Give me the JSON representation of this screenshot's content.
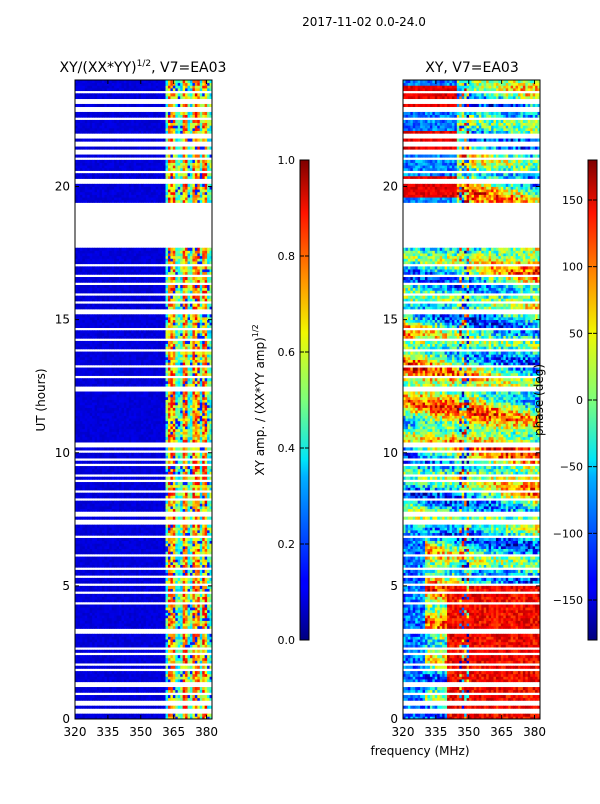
{
  "figure_title": "2017-11-02 0.0-24.0",
  "chart_data": [
    {
      "type": "heatmap",
      "title_prefix": "XY/(XX*YY)",
      "title_exponent": "1/2",
      "title_suffix": ", V7=EA03",
      "xlabel": "",
      "ylabel": "UT (hours)",
      "xlim": [
        320,
        382.5
      ],
      "ylim": [
        0,
        24
      ],
      "xticks": [
        320,
        335,
        350,
        365,
        380
      ],
      "yticks": [
        0,
        5,
        10,
        15,
        20
      ],
      "colorbar": {
        "label": "XY amp. / (XX*YY amp)",
        "label_exponent": "1/2",
        "range": [
          0.0,
          1.0
        ],
        "ticks": [
          "0.0",
          "0.2",
          "0.4",
          "0.6",
          "0.8",
          "1.0"
        ],
        "tick_values": [
          0.0,
          0.2,
          0.4,
          0.6,
          0.8,
          1.0
        ]
      },
      "blank_hours": [
        [
          19.35,
          17.7
        ]
      ],
      "gap_hours": [
        0.3,
        0.6,
        0.95,
        1.3,
        1.85,
        2.05,
        2.45,
        2.65,
        3.3,
        4.35,
        4.75,
        5.05,
        5.35,
        5.65,
        6.15,
        6.85,
        7.4,
        7.7,
        8.25,
        8.55,
        8.95,
        9.15,
        9.55,
        9.75,
        10.05,
        10.3,
        12.4,
        12.85,
        13.25,
        13.85,
        14.25,
        14.65,
        15.3,
        15.65,
        15.95,
        16.35,
        16.65,
        17.05,
        20.2,
        20.55,
        21.05,
        21.3,
        21.6,
        21.9,
        22.55,
        22.9,
        23.2,
        23.55
      ],
      "hot_channels_mhz": [
        364,
        370,
        375,
        379
      ]
    },
    {
      "type": "heatmap",
      "title": "XY, V7=EA03",
      "xlabel": "frequency (MHz)",
      "ylabel": "",
      "xlim": [
        320,
        382.5
      ],
      "ylim": [
        0,
        24
      ],
      "xticks": [
        320,
        335,
        350,
        365,
        380
      ],
      "yticks": [
        0,
        5,
        10,
        15,
        20
      ],
      "colorbar": {
        "label": "phase (deg)",
        "range": [
          -180,
          180
        ],
        "ticks": [
          "150",
          "100",
          "50",
          "0",
          "−50",
          "−100",
          "−150"
        ],
        "tick_values": [
          150,
          100,
          50,
          0,
          -50,
          -100,
          -150
        ]
      },
      "blank_hours": [
        [
          19.35,
          17.7
        ]
      ],
      "gap_hours": [
        0.3,
        0.6,
        0.95,
        1.3,
        1.85,
        2.05,
        2.45,
        2.65,
        3.3,
        4.35,
        4.75,
        5.05,
        5.35,
        5.65,
        6.15,
        6.85,
        7.4,
        7.7,
        8.25,
        8.55,
        8.95,
        9.15,
        9.55,
        9.75,
        10.05,
        10.3,
        12.4,
        12.85,
        13.25,
        13.85,
        14.25,
        14.65,
        15.3,
        15.65,
        15.95,
        16.35,
        16.65,
        17.05,
        20.2,
        20.55,
        21.05,
        21.3,
        21.6,
        21.9,
        22.55,
        22.9,
        23.2,
        23.55
      ]
    }
  ]
}
